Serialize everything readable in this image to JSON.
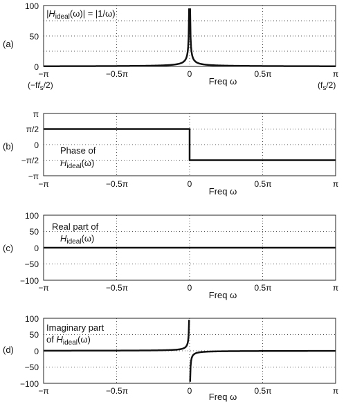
{
  "chart_data": [
    {
      "type": "line",
      "panel_label": "(a)",
      "xlabel": "Freq ω",
      "xlim": [
        -3.14159,
        3.14159
      ],
      "ylim": [
        0,
        100
      ],
      "xtick_labels": [
        "−π",
        "−0.5π",
        "0",
        "0.5π",
        "π"
      ],
      "xtick_sublabels": [
        "(−f",
        "/2)",
        "(f",
        "/2)"
      ],
      "ytick_labels": [
        "0",
        "50",
        "100"
      ],
      "y_grid_values": [
        25,
        50,
        75
      ],
      "annotation": {
        "pre": "|H",
        "sub": "ideal",
        "post": "(ω)| = |1/ω)"
      },
      "series": [
        {
          "function": "abs(1/ω)",
          "x_min": -3.14159,
          "x_max": 3.14159,
          "gap_around_zero": 0.0105
        }
      ]
    },
    {
      "type": "line",
      "panel_label": "(b)",
      "xlabel": "Freq ω",
      "xlim": [
        -3.14159,
        3.14159
      ],
      "ylim": [
        -3.14159,
        3.14159
      ],
      "xtick_labels": [
        "−π",
        "−0.5π",
        "0",
        "0.5π",
        "π"
      ],
      "ytick_labels": [
        "π",
        "π/2",
        "0",
        "−π/2",
        "−π"
      ],
      "ytick_values": [
        3.14159,
        1.5708,
        0,
        -1.5708,
        -3.14159
      ],
      "annotation": {
        "line1": "Phase of",
        "pre": "H",
        "sub": "ideal",
        "post": "(ω)"
      },
      "series": [
        {
          "x": [
            -3.14159,
            0,
            0,
            3.14159
          ],
          "y": [
            1.5708,
            1.5708,
            -1.5708,
            -1.5708
          ]
        }
      ]
    },
    {
      "type": "line",
      "panel_label": "(c)",
      "xlabel": "Freq ω",
      "xlim": [
        -3.14159,
        3.14159
      ],
      "ylim": [
        -100,
        100
      ],
      "xtick_labels": [
        "−π",
        "−0.5π",
        "0",
        "0.5π",
        "π"
      ],
      "ytick_labels": [
        "100",
        "50",
        "0",
        "−50",
        "−100"
      ],
      "ytick_values": [
        100,
        50,
        0,
        -50,
        -100
      ],
      "annotation": {
        "line1": "Real part of",
        "pre": "H",
        "sub": "ideal",
        "post": "(ω)"
      },
      "series": [
        {
          "x": [
            -3.14159,
            3.14159
          ],
          "y": [
            0,
            0
          ]
        }
      ]
    },
    {
      "type": "line",
      "panel_label": "(d)",
      "xlabel": "Freq ω",
      "xlim": [
        -3.14159,
        3.14159
      ],
      "ylim": [
        -100,
        100
      ],
      "xtick_labels": [
        "−π",
        "−0.5π",
        "0",
        "0.5π",
        "π"
      ],
      "ytick_labels": [
        "100",
        "50",
        "0",
        "−50",
        "−100"
      ],
      "ytick_values": [
        100,
        50,
        0,
        -50,
        -100
      ],
      "annotation": {
        "line1": "Imaginary part",
        "line2_pre": "of ",
        "pre": "H",
        "sub": "ideal",
        "post": "(ω)"
      },
      "series": [
        {
          "function": "-1/ω",
          "x_min": -3.14159,
          "x_max": 3.14159,
          "gap_around_zero": 0.0105
        }
      ]
    }
  ]
}
